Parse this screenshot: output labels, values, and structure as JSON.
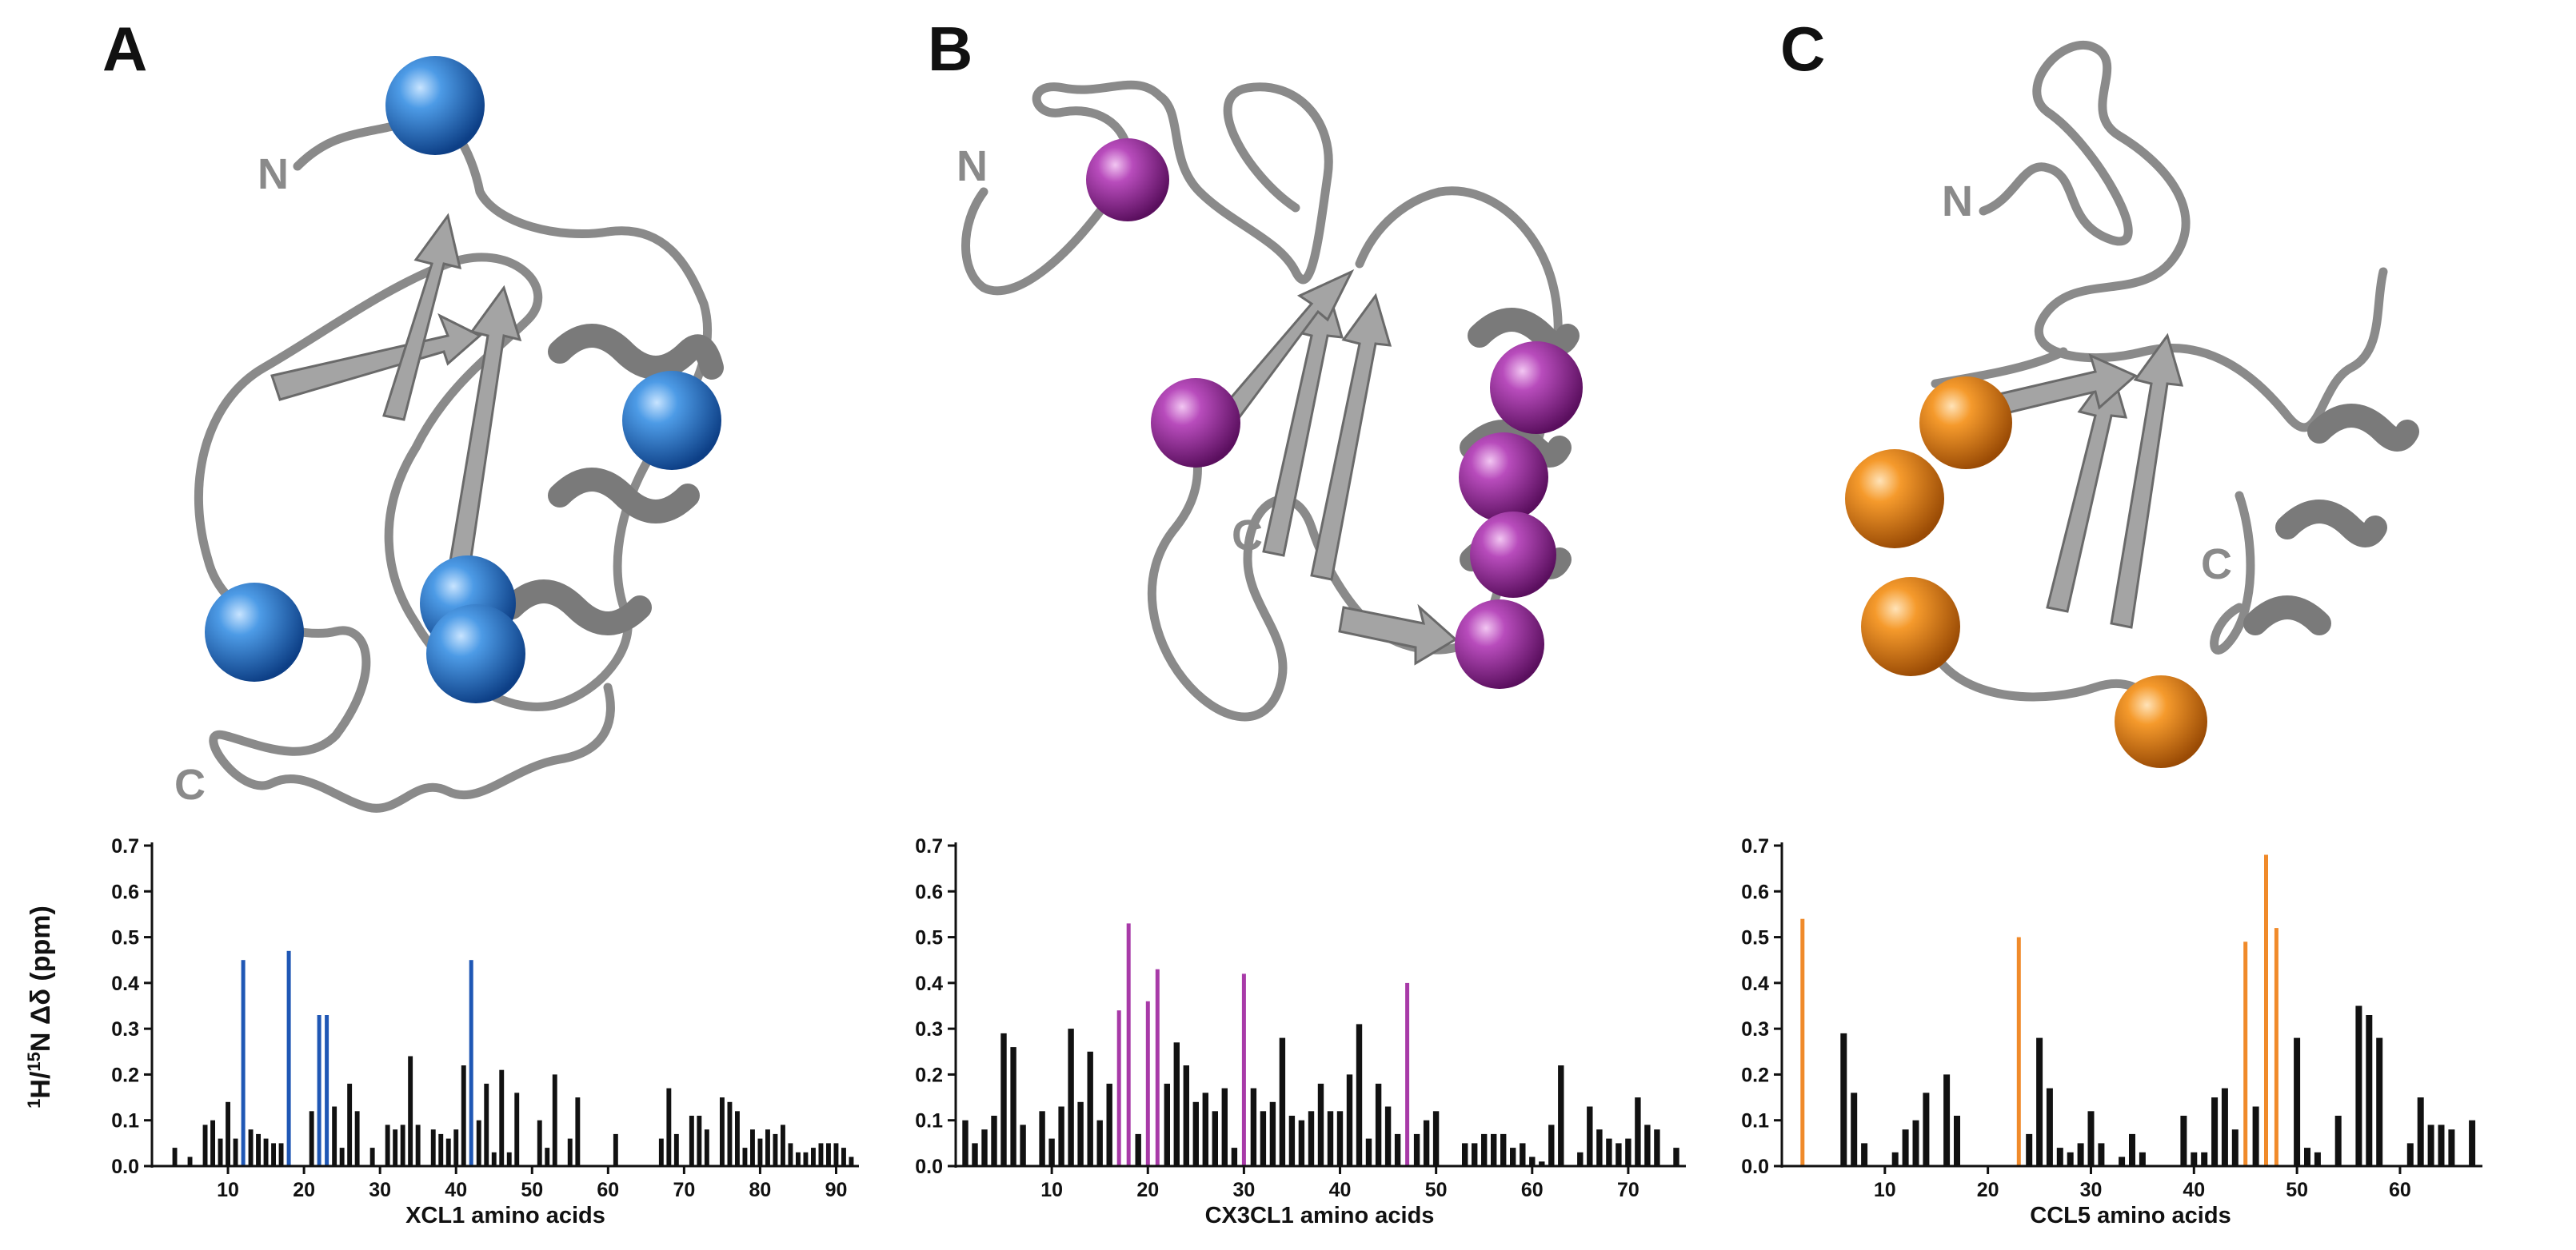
{
  "panels": [
    {
      "letter": "A",
      "n_label": "N",
      "c_label": "C",
      "sphere_color": "#1f6fc5",
      "highlight_color": "#1f57b5",
      "chart_data": {
        "type": "bar",
        "xlabel": "XCL1 amino acids",
        "ylabel": "1H/15N Δδ (ppm)",
        "ylim": [
          0,
          0.7
        ],
        "yticks": [
          0.0,
          0.1,
          0.2,
          0.3,
          0.4,
          0.5,
          0.6,
          0.7
        ],
        "xlim": [
          0,
          93
        ],
        "xticks": [
          10,
          20,
          30,
          40,
          50,
          60,
          70,
          80,
          90
        ],
        "x": [
          3,
          5,
          7,
          8,
          9,
          10,
          11,
          12,
          13,
          14,
          15,
          16,
          17,
          18,
          19,
          21,
          22,
          23,
          24,
          25,
          26,
          27,
          28,
          29,
          30,
          31,
          32,
          33,
          34,
          35,
          36,
          37,
          38,
          39,
          40,
          41,
          42,
          43,
          44,
          45,
          46,
          47,
          48,
          49,
          50,
          51,
          52,
          53,
          54,
          55,
          56,
          57,
          58,
          59,
          60,
          61,
          62,
          63,
          64,
          65,
          66,
          67,
          68,
          69,
          70,
          71,
          72,
          73,
          74,
          75,
          76,
          77,
          78,
          79,
          80,
          81,
          82,
          83,
          84,
          85,
          86,
          87,
          88,
          89,
          90,
          91,
          92
        ],
        "values": [
          0.04,
          0.02,
          0.09,
          0.1,
          0.06,
          0.14,
          0.06,
          0.45,
          0.08,
          0.07,
          0.06,
          0.05,
          0.05,
          0.47,
          0.0,
          0.12,
          0.33,
          0.33,
          0.13,
          0.04,
          0.18,
          0.12,
          0.0,
          0.04,
          0.0,
          0.09,
          0.08,
          0.09,
          0.24,
          0.09,
          0.0,
          0.08,
          0.07,
          0.06,
          0.08,
          0.22,
          0.45,
          0.1,
          0.18,
          0.03,
          0.21,
          0.03,
          0.16,
          0.0,
          0.0,
          0.1,
          0.04,
          0.2,
          0.0,
          0.06,
          0.15,
          0.0,
          0.0,
          0.0,
          0.0,
          0.07,
          0.0,
          0.0,
          0.0,
          0.0,
          0.0,
          0.06,
          0.17,
          0.07,
          0.0,
          0.11,
          0.11,
          0.08,
          0.0,
          0.15,
          0.14,
          0.12,
          0.04,
          0.08,
          0.06,
          0.08,
          0.07,
          0.09,
          0.05,
          0.03,
          0.03,
          0.04,
          0.05,
          0.05,
          0.05,
          0.04,
          0.02
        ],
        "highlighted_x": [
          12,
          18,
          22,
          23,
          42
        ]
      }
    },
    {
      "letter": "B",
      "n_label": "N",
      "c_label": "C",
      "sphere_color": "#9b2ea0",
      "highlight_color": "#a83aa8",
      "chart_data": {
        "type": "bar",
        "xlabel": "CX3CL1 amino acids",
        "ylabel": "",
        "ylim": [
          0,
          0.7
        ],
        "yticks": [
          0.0,
          0.1,
          0.2,
          0.3,
          0.4,
          0.5,
          0.6,
          0.7
        ],
        "xlim": [
          0,
          76
        ],
        "xticks": [
          10,
          20,
          30,
          40,
          50,
          60,
          70
        ],
        "x": [
          1,
          2,
          3,
          4,
          5,
          6,
          7,
          9,
          10,
          11,
          12,
          13,
          14,
          15,
          16,
          17,
          18,
          19,
          20,
          21,
          22,
          23,
          24,
          25,
          26,
          27,
          28,
          29,
          30,
          31,
          32,
          33,
          34,
          35,
          36,
          37,
          38,
          39,
          40,
          41,
          42,
          43,
          44,
          45,
          46,
          47,
          48,
          49,
          50,
          51,
          53,
          54,
          55,
          56,
          57,
          58,
          59,
          60,
          61,
          62,
          63,
          64,
          65,
          66,
          67,
          68,
          69,
          70,
          71,
          72,
          73,
          74,
          75
        ],
        "values": [
          0.1,
          0.05,
          0.08,
          0.11,
          0.29,
          0.26,
          0.09,
          0.12,
          0.06,
          0.13,
          0.3,
          0.14,
          0.25,
          0.1,
          0.18,
          0.34,
          0.53,
          0.07,
          0.36,
          0.43,
          0.18,
          0.27,
          0.22,
          0.14,
          0.16,
          0.12,
          0.17,
          0.04,
          0.42,
          0.17,
          0.12,
          0.14,
          0.28,
          0.11,
          0.1,
          0.12,
          0.18,
          0.12,
          0.12,
          0.2,
          0.31,
          0.06,
          0.18,
          0.13,
          0.07,
          0.4,
          0.07,
          0.1,
          0.12,
          0.0,
          0.05,
          0.05,
          0.07,
          0.07,
          0.07,
          0.04,
          0.05,
          0.02,
          0.01,
          0.09,
          0.22,
          0.0,
          0.03,
          0.13,
          0.08,
          0.06,
          0.05,
          0.06,
          0.15,
          0.09,
          0.08,
          0.0,
          0.04
        ],
        "highlighted_x": [
          17,
          18,
          20,
          21,
          30,
          47
        ]
      }
    },
    {
      "letter": "C",
      "n_label": "N",
      "c_label": "C",
      "sphere_color": "#f0901f",
      "highlight_color": "#f08a2a",
      "chart_data": {
        "type": "bar",
        "xlabel": "CCL5 amino acids",
        "ylabel": "",
        "ylim": [
          0,
          0.7
        ],
        "yticks": [
          0.0,
          0.1,
          0.2,
          0.3,
          0.4,
          0.5,
          0.6,
          0.7
        ],
        "xlim": [
          0,
          68
        ],
        "xticks": [
          10,
          20,
          30,
          40,
          50,
          60
        ],
        "x": [
          2,
          6,
          7,
          8,
          11,
          12,
          13,
          14,
          16,
          17,
          23,
          24,
          25,
          26,
          27,
          28,
          29,
          30,
          31,
          33,
          34,
          35,
          37,
          39,
          40,
          41,
          42,
          43,
          44,
          45,
          46,
          47,
          48,
          50,
          51,
          52,
          54,
          56,
          57,
          58,
          59,
          61,
          62,
          63,
          64,
          65,
          67
        ],
        "values": [
          0.54,
          0.29,
          0.16,
          0.05,
          0.03,
          0.08,
          0.1,
          0.16,
          0.2,
          0.11,
          0.5,
          0.07,
          0.28,
          0.17,
          0.04,
          0.03,
          0.05,
          0.12,
          0.05,
          0.02,
          0.07,
          0.03,
          0.0,
          0.11,
          0.03,
          0.03,
          0.15,
          0.17,
          0.08,
          0.49,
          0.13,
          0.68,
          0.52,
          0.28,
          0.04,
          0.03,
          0.11,
          0.35,
          0.33,
          0.28,
          0.0,
          0.05,
          0.15,
          0.09,
          0.09,
          0.08,
          0.1
        ],
        "highlighted_x": [
          2,
          23,
          45,
          47,
          48
        ]
      }
    }
  ]
}
